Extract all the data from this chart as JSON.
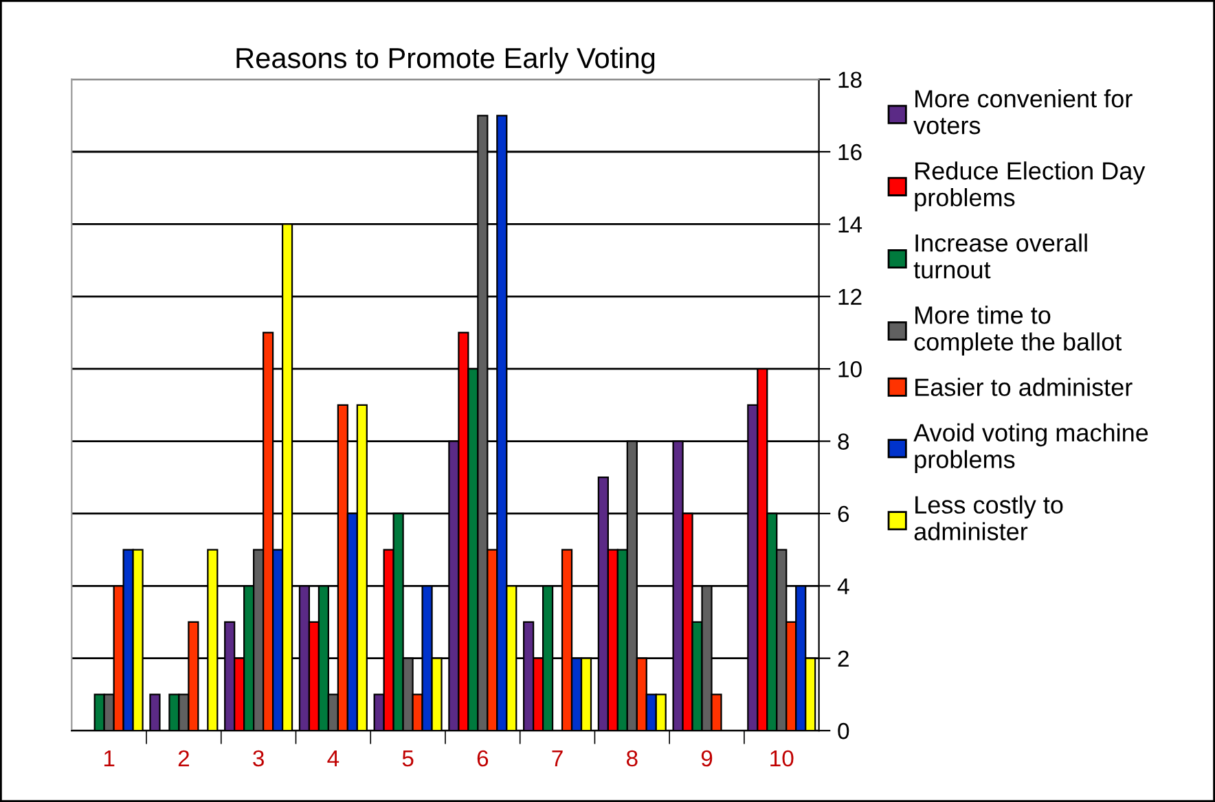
{
  "chart_data": {
    "type": "bar",
    "title": "Reasons to Promote Early Voting",
    "categories": [
      "1",
      "2",
      "3",
      "4",
      "5",
      "6",
      "7",
      "8",
      "9",
      "10"
    ],
    "series": [
      {
        "name": "More convenient for\nvoters",
        "color": "#5b2a86",
        "values": [
          null,
          1,
          3,
          4,
          1,
          8,
          3,
          7,
          8,
          9
        ]
      },
      {
        "name": "Reduce Election Day\nproblems",
        "color": "#ff0000",
        "values": [
          null,
          null,
          2,
          3,
          5,
          11,
          2,
          5,
          6,
          10
        ]
      },
      {
        "name": "Increase overall\nturnout",
        "color": "#007a3d",
        "values": [
          1,
          1,
          4,
          4,
          6,
          10,
          4,
          5,
          3,
          6
        ]
      },
      {
        "name": "More time to\ncomplete the ballot",
        "color": "#606060",
        "values": [
          1,
          1,
          5,
          1,
          2,
          17,
          null,
          8,
          4,
          5
        ]
      },
      {
        "name": "Easier to administer",
        "color": "#ff3300",
        "values": [
          4,
          3,
          11,
          9,
          1,
          5,
          5,
          2,
          1,
          3
        ]
      },
      {
        "name": "Avoid voting machine\nproblems",
        "color": "#0033cc",
        "values": [
          5,
          null,
          5,
          6,
          4,
          17,
          2,
          1,
          null,
          4
        ]
      },
      {
        "name": "Less costly to\nadminister",
        "color": "#ffff00",
        "values": [
          5,
          5,
          14,
          9,
          2,
          4,
          2,
          1,
          null,
          2
        ]
      }
    ],
    "ylim": [
      0,
      18
    ],
    "yticks": [
      0,
      2,
      4,
      6,
      8,
      10,
      12,
      14,
      16,
      18
    ],
    "grid": "y",
    "legend": "right"
  }
}
